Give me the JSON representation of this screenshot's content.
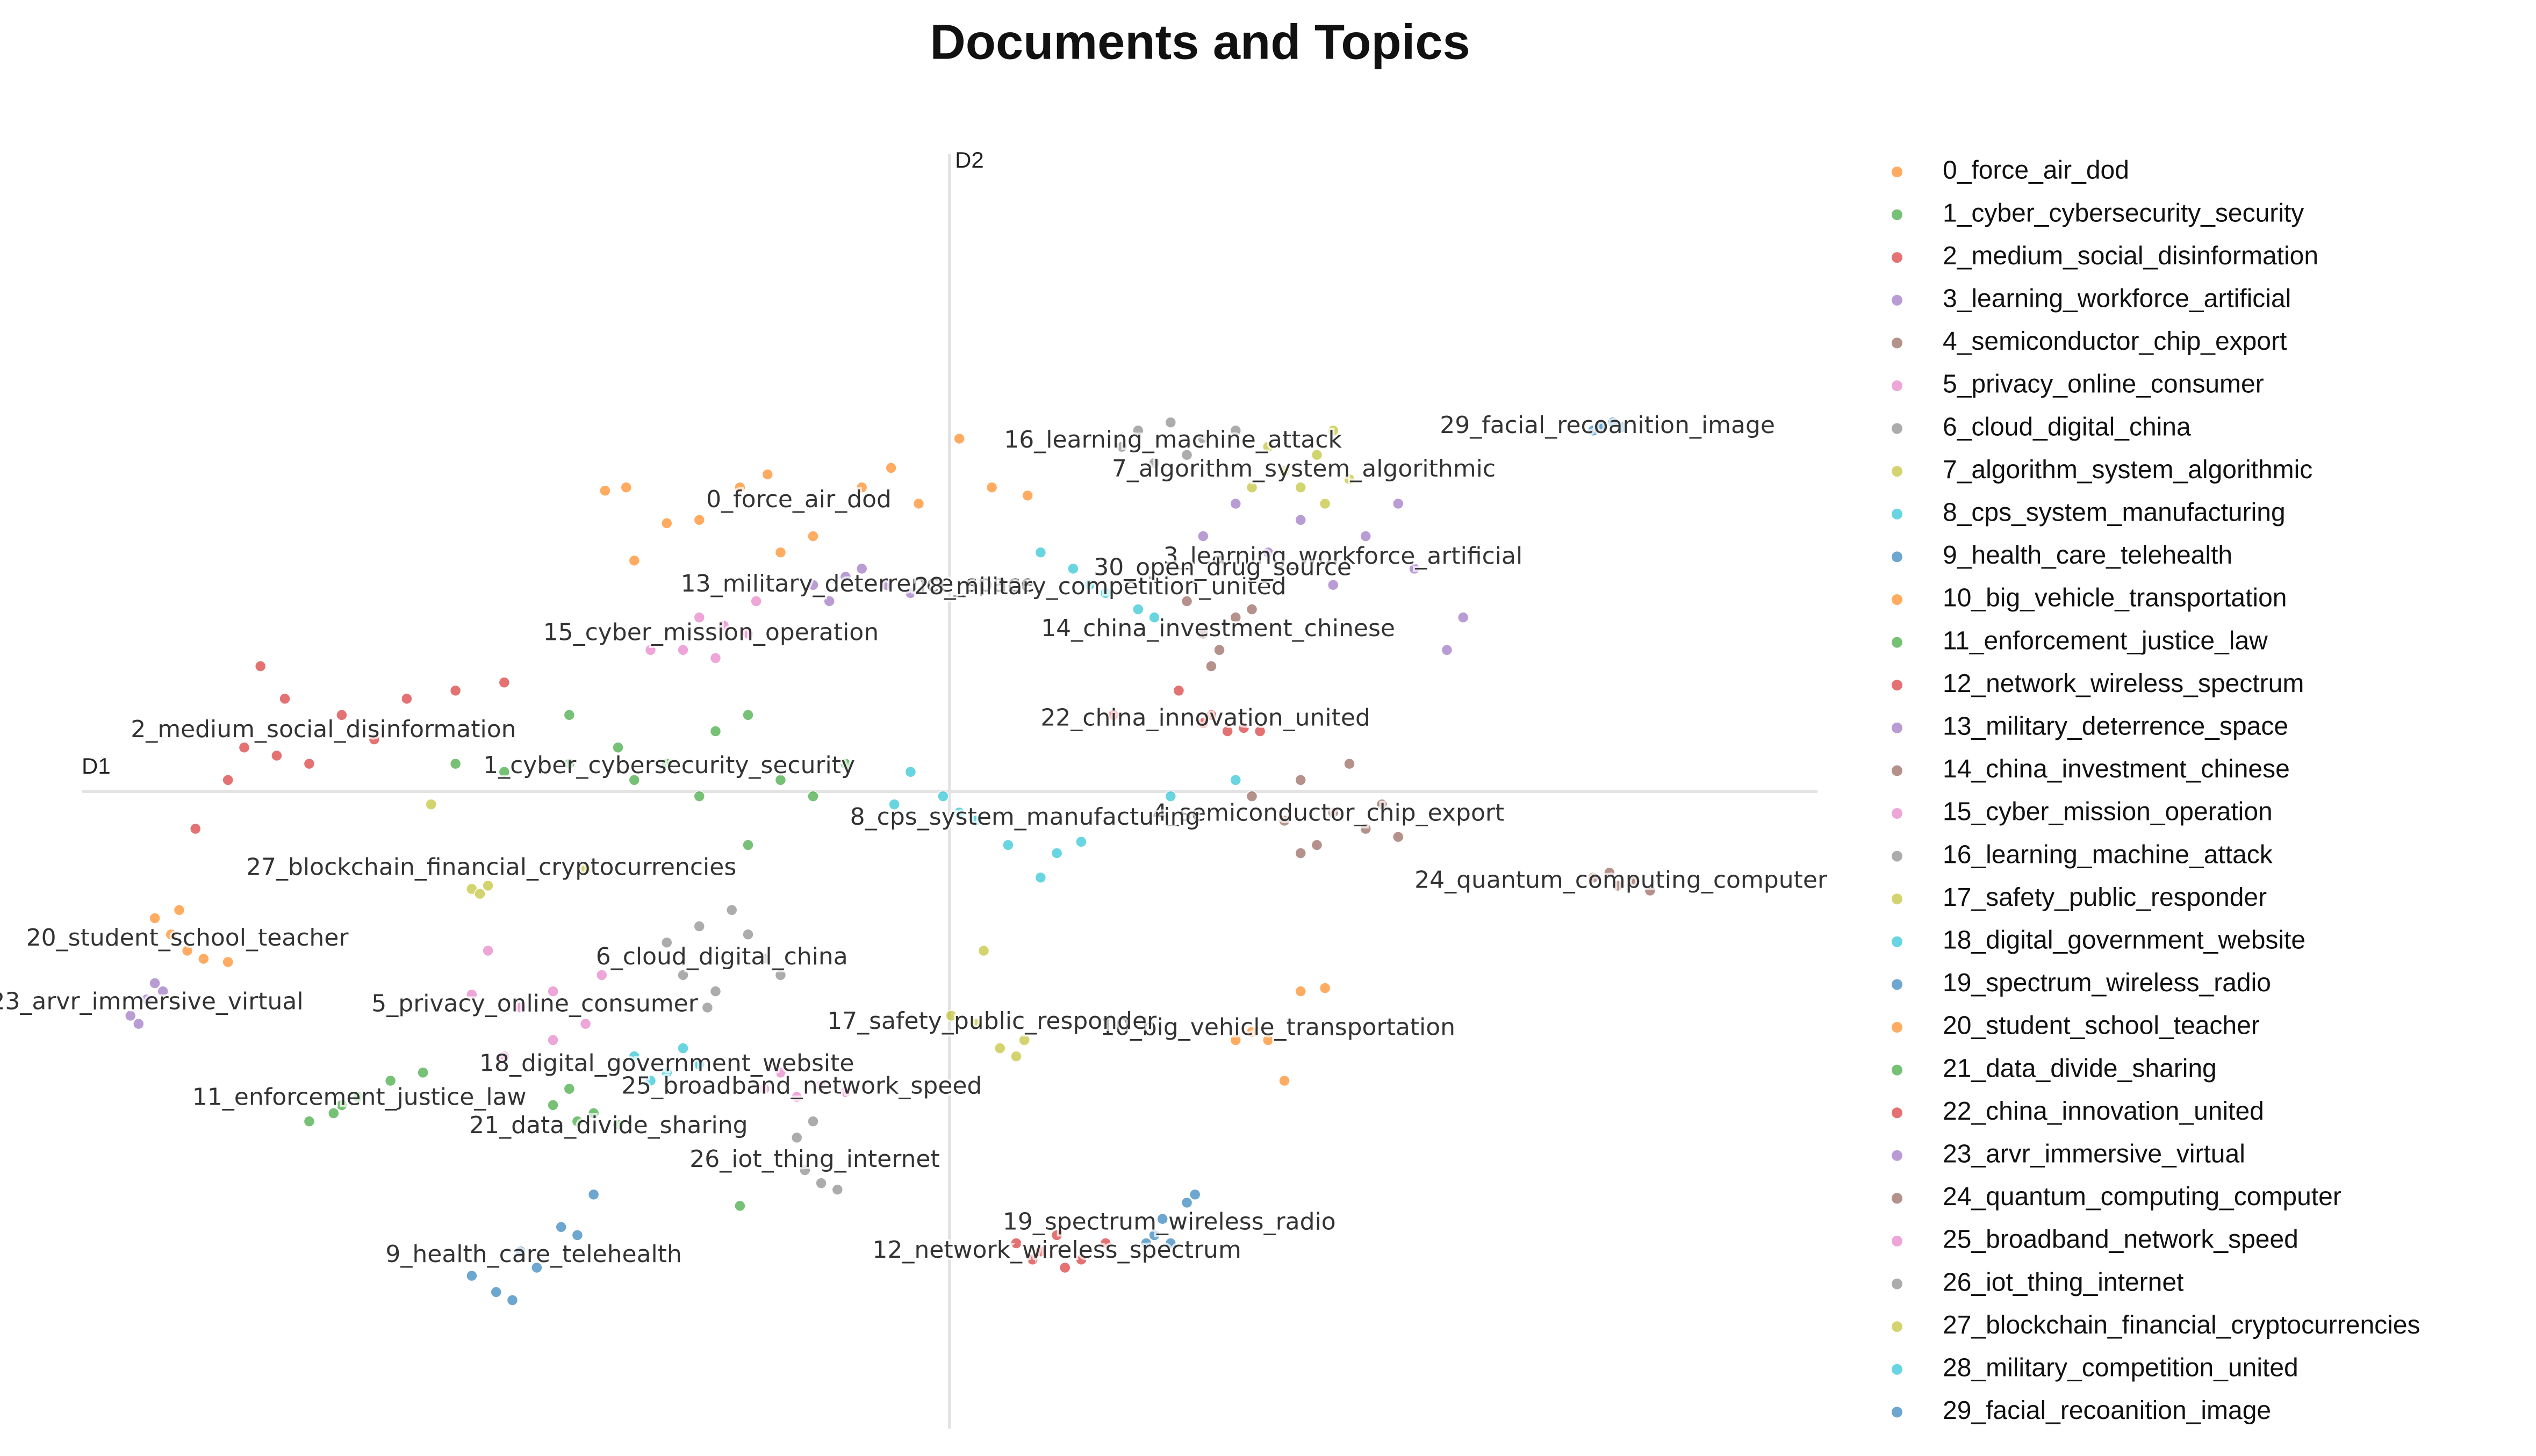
{
  "chart_data": {
    "type": "scatter",
    "title": "Documents and Topics",
    "xlabel": "D1",
    "ylabel": "D2",
    "xlim": [
      -534,
      534
    ],
    "ylim": [
      -392,
      392
    ],
    "series": [
      {
        "name": "0_force_air_dod",
        "color": "#ff7f0e",
        "x": [
          -212,
          -194,
          -174,
          -129,
          -112,
          -84,
          -54,
          -36,
          -19,
          6,
          26,
          48,
          -104,
          -154,
          -199
        ],
        "values": [
          185,
          142,
          165,
          187,
          195,
          157,
          187,
          199,
          177,
          217,
          187,
          182,
          147,
          167,
          187
        ]
      },
      {
        "name": "1_cyber_cybersecurity_security",
        "color": "#2ca02c",
        "x": [
          -304,
          -274,
          -234,
          -204,
          -174,
          -144,
          -124,
          -104,
          -84,
          -154,
          -194,
          -124,
          -234,
          -64
        ],
        "values": [
          17,
          12,
          47,
          27,
          17,
          37,
          47,
          7,
          -3,
          -3,
          7,
          -33,
          17,
          17
        ]
      },
      {
        "name": "2_medium_social_disinformation",
        "color": "#d62728",
        "x": [
          -424,
          -409,
          -414,
          -394,
          -434,
          -374,
          -334,
          -304,
          -274,
          -444,
          -464,
          -354
        ],
        "values": [
          77,
          57,
          22,
          17,
          27,
          47,
          57,
          62,
          67,
          7,
          -23,
          32
        ]
      },
      {
        "name": "3_learning_workforce_artificial",
        "color": "#9467bd",
        "x": [
          176,
          216,
          256,
          286,
          316,
          276,
          196,
          236,
          306,
          156
        ],
        "values": [
          177,
          167,
          157,
          137,
          107,
          177,
          147,
          127,
          87,
          157
        ]
      },
      {
        "name": "4_semiconductor_chip_export",
        "color": "#8c564b",
        "x": [
          216,
          236,
          256,
          266,
          226,
          206,
          246,
          276,
          186,
          216
        ],
        "values": [
          7,
          -13,
          -23,
          -8,
          -33,
          -18,
          17,
          -28,
          -3,
          -38
        ]
      },
      {
        "name": "5_privacy_online_consumer",
        "color": "#e377c2",
        "x": [
          -294,
          -284,
          -264,
          -244,
          -224,
          -274,
          -214,
          -244
        ],
        "values": [
          -125,
          -98,
          -133,
          -153,
          -143,
          -163,
          -113,
          -123
        ]
      },
      {
        "name": "6_cloud_digital_china",
        "color": "#7f7f7f",
        "x": [
          -174,
          -154,
          -134,
          -124,
          -104,
          -144,
          -164,
          -114,
          -149
        ],
        "values": [
          -93,
          -83,
          -73,
          -88,
          -113,
          -123,
          -113,
          -103,
          -133
        ]
      },
      {
        "name": "7_algorithm_system_algorithmic",
        "color": "#bcbd22",
        "x": [
          206,
          226,
          236,
          216,
          196,
          246,
          186,
          231
        ],
        "values": [
          197,
          207,
          222,
          187,
          212,
          192,
          187,
          177
        ]
      },
      {
        "name": "8_cps_system_manufacturing",
        "color": "#17becf",
        "x": [
          -34,
          -4,
          16,
          36,
          66,
          81,
          56,
          6,
          -24,
          136,
          176
        ],
        "values": [
          -8,
          -3,
          -18,
          -33,
          -38,
          -31,
          -53,
          -13,
          12,
          -3,
          7
        ]
      },
      {
        "name": "9_health_care_telehealth",
        "color": "#1f77b4",
        "x": [
          -294,
          -279,
          -269,
          -254,
          -239,
          -229,
          -264,
          -219
        ],
        "values": [
          -298,
          -308,
          -313,
          -293,
          -268,
          -273,
          -283,
          -248
        ]
      },
      {
        "name": "10_big_vehicle_transportation",
        "color": "#ff7f0e",
        "x": [
          196,
          216,
          231,
          206,
          186,
          176
        ],
        "values": [
          -153,
          -123,
          -121,
          -178,
          -148,
          -153
        ]
      },
      {
        "name": "11_enforcement_justice_law",
        "color": "#2ca02c",
        "x": [
          -394,
          -379,
          -364,
          -344,
          -324,
          -374
        ],
        "values": [
          -203,
          -198,
          -188,
          -178,
          -173,
          -193
        ]
      },
      {
        "name": "12_network_wireless_spectrum",
        "color": "#d62728",
        "x": [
          41,
          56,
          71,
          81,
          96,
          66,
          51
        ],
        "values": [
          -278,
          -283,
          -293,
          -288,
          -278,
          -273,
          -288
        ]
      },
      {
        "name": "13_military_deterrence_space",
        "color": "#9467bd",
        "x": [
          -84,
          -64,
          -39,
          -24,
          -74,
          -54
        ],
        "values": [
          127,
          132,
          127,
          122,
          117,
          137
        ]
      },
      {
        "name": "14_china_investment_chinese",
        "color": "#8c564b",
        "x": [
          156,
          166,
          176,
          161,
          146,
          186
        ],
        "values": [
          97,
          87,
          107,
          77,
          117,
          112
        ]
      },
      {
        "name": "15_cyber_mission_operation",
        "color": "#e377c2",
        "x": [
          -154,
          -139,
          -124,
          -144,
          -164,
          -119,
          -184
        ],
        "values": [
          107,
          102,
          97,
          82,
          87,
          117,
          87
        ]
      },
      {
        "name": "16_learning_machine_attack",
        "color": "#7f7f7f",
        "x": [
          116,
          136,
          156,
          176,
          106,
          146,
          126
        ],
        "values": [
          222,
          227,
          217,
          222,
          212,
          207,
          202
        ]
      },
      {
        "name": "17_safety_public_responder",
        "color": "#bcbd22",
        "x": [
          16,
          31,
          41,
          46,
          1,
          21
        ],
        "values": [
          -143,
          -158,
          -163,
          -153,
          -138,
          -98
        ]
      },
      {
        "name": "18_digital_government_website",
        "color": "#17becf",
        "x": [
          -194,
          -174,
          -164,
          -184,
          -154
        ],
        "values": [
          -163,
          -173,
          -158,
          -178,
          -168
        ]
      },
      {
        "name": "19_spectrum_wireless_radio",
        "color": "#1f77b4",
        "x": [
          126,
          136,
          146,
          131,
          151,
          121
        ],
        "values": [
          -273,
          -278,
          -253,
          -263,
          -248,
          -278
        ]
      },
      {
        "name": "20_student_school_teacher",
        "color": "#ff7f0e",
        "x": [
          -489,
          -479,
          -469,
          -459,
          -474,
          -444
        ],
        "values": [
          -78,
          -88,
          -98,
          -103,
          -73,
          -105
        ]
      },
      {
        "name": "21_data_divide_sharing",
        "color": "#2ca02c",
        "x": [
          -244,
          -229,
          -219,
          -204,
          -234,
          -129
        ],
        "values": [
          -193,
          -203,
          -198,
          -205,
          -183,
          -255
        ]
      },
      {
        "name": "22_china_innovation_united",
        "color": "#d62728",
        "x": [
          156,
          171,
          181,
          191,
          161,
          101,
          141
        ],
        "values": [
          42,
          37,
          39,
          37,
          47,
          47,
          62
        ]
      },
      {
        "name": "23_arvr_immersive_virtual",
        "color": "#9467bd",
        "x": [
          -504,
          -494,
          -489,
          -499,
          -484
        ],
        "values": [
          -138,
          -128,
          -118,
          -143,
          -123
        ]
      },
      {
        "name": "24_quantum_computing_computer",
        "color": "#8c564b",
        "x": [
          396,
          411,
          421,
          431,
          406
        ],
        "values": [
          -53,
          -58,
          -55,
          -61,
          -50
        ]
      },
      {
        "name": "25_broadband_network_speed",
        "color": "#e377c2",
        "x": [
          -114,
          -94,
          -79,
          -64,
          -104
        ],
        "values": [
          -183,
          -188,
          -181,
          -185,
          -173
        ]
      },
      {
        "name": "26_iot_thing_internet",
        "color": "#7f7f7f",
        "x": [
          -89,
          -79,
          -69,
          -94,
          -84
        ],
        "values": [
          -233,
          -241,
          -245,
          -213,
          -203
        ]
      },
      {
        "name": "27_blockchain_financial_cryptocurrencies",
        "color": "#bcbd22",
        "x": [
          -294,
          -284,
          -319,
          -224,
          -289
        ],
        "values": [
          -60,
          -58,
          -8,
          -48,
          -63
        ]
      },
      {
        "name": "28_military_competition_united",
        "color": "#17becf",
        "x": [
          56,
          76,
          96,
          116,
          126,
          86
        ],
        "values": [
          147,
          137,
          122,
          112,
          107,
          127
        ]
      },
      {
        "name": "29_facial_recoanition_image",
        "color": "#1f77b4",
        "x": [
          401,
          408,
          414,
          396
        ],
        "values": [
          225,
          227,
          224,
          222
        ]
      }
    ],
    "annotations": [
      {
        "text": "30_open_drug_source",
        "x": 168,
        "y": 137
      }
    ]
  }
}
